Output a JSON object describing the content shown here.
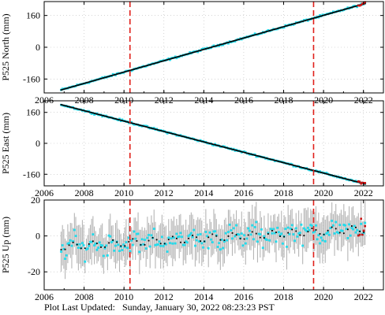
{
  "footer": {
    "label": "Plot Last Updated:",
    "timestamp": "Sunday, January 30, 2022 08:23:23 PST"
  },
  "colors": {
    "observations": "#22ddee",
    "error_bars": "#b5b5b5",
    "model_fit": "#000000",
    "event_lines": "#e0201b",
    "recent_points": "#cc1111"
  },
  "chart_data": [
    {
      "type": "scatter",
      "ylabel": "P525 North (mm)",
      "xlim": [
        2006,
        2023
      ],
      "ylim": [
        -230,
        230
      ],
      "xticks": [
        2006,
        2008,
        2010,
        2012,
        2014,
        2016,
        2018,
        2020,
        2022
      ],
      "yticks": [
        -160,
        0,
        160
      ],
      "x_start": 2006.85,
      "x_end": 2022.08,
      "y_start": -215,
      "y_end": 220,
      "noise": 4,
      "vlines": [
        2010.3,
        2019.5
      ],
      "grid": true,
      "legend": "none"
    },
    {
      "type": "scatter",
      "ylabel": "P525 East (mm)",
      "xlim": [
        2006,
        2023
      ],
      "ylim": [
        -220,
        220
      ],
      "xticks": [
        2006,
        2008,
        2010,
        2012,
        2014,
        2016,
        2018,
        2020,
        2022
      ],
      "yticks": [
        -160,
        0,
        160
      ],
      "x_start": 2006.85,
      "x_end": 2022.08,
      "y_start": 200,
      "y_end": -210,
      "noise": 4,
      "vlines": [
        2010.3,
        2019.5
      ],
      "grid": true,
      "legend": "none"
    },
    {
      "type": "scatter",
      "ylabel": "P525 Up (mm)",
      "xlim": [
        2006,
        2023
      ],
      "ylim": [
        -30,
        20
      ],
      "xticks": [
        2006,
        2008,
        2010,
        2012,
        2014,
        2016,
        2018,
        2020,
        2022
      ],
      "yticks": [
        -20,
        0,
        20
      ],
      "x_start": 2006.85,
      "x_end": 2022.08,
      "trend_start": -6,
      "trend_end": 4,
      "seasonal_amplitude": 2,
      "noise": 5,
      "vlines": [
        2010.3,
        2019.5
      ],
      "grid": true,
      "legend": "none"
    }
  ]
}
